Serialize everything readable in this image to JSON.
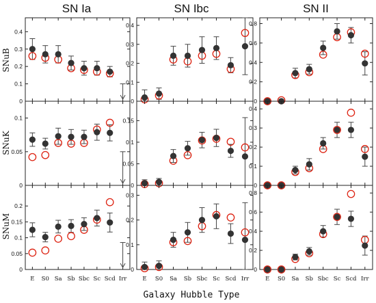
{
  "figure": {
    "xlabel": "Galaxy Hubble Type",
    "columns": [
      "SN Ia",
      "SN Ibc",
      "SN II"
    ],
    "rows": [
      "SNuB",
      "SNuK",
      "SNuM"
    ],
    "categories": [
      "E",
      "S0",
      "Sa",
      "Sb",
      "Sbc",
      "Sc",
      "Scd",
      "Irr"
    ]
  },
  "colors": {
    "measured": "#333333",
    "predicted": "#dd2211",
    "errorbar": "#444444"
  },
  "chart_data": [
    {
      "type": "scatter",
      "panel": "SN Ia / SNuB",
      "ylim": [
        0,
        0.48
      ],
      "yticks": [
        0,
        0.1,
        0.2,
        0.3,
        0.4
      ],
      "series": [
        {
          "marker": "filled-circle",
          "values": [
            0.3,
            0.27,
            0.27,
            0.22,
            0.19,
            0.19,
            0.17,
            null
          ],
          "err": [
            0.06,
            0.05,
            0.05,
            0.04,
            0.04,
            0.04,
            0.03,
            null
          ]
        },
        {
          "marker": "open-circle",
          "values": [
            0.26,
            0.25,
            0.24,
            0.19,
            0.18,
            0.17,
            0.16,
            null
          ]
        }
      ],
      "upper_limit": {
        "category": "Irr",
        "value": 0.1
      }
    },
    {
      "type": "scatter",
      "panel": "SN Ibc / SNuB",
      "ylim": [
        0,
        0.44
      ],
      "yticks": [
        0,
        0.1,
        0.2,
        0.3,
        0.4
      ],
      "series": [
        {
          "marker": "filled-circle",
          "values": [
            0.02,
            0.04,
            0.24,
            0.24,
            0.27,
            0.28,
            0.19,
            0.29
          ],
          "err": [
            0.04,
            0.03,
            0.05,
            0.06,
            0.07,
            0.06,
            0.04,
            0.15
          ]
        },
        {
          "marker": "open-circle",
          "values": [
            0.01,
            0.03,
            0.22,
            0.21,
            0.24,
            0.25,
            0.17,
            0.36
          ]
        }
      ]
    },
    {
      "type": "scatter",
      "panel": "SN II / SNuB",
      "ylim": [
        0,
        0.86
      ],
      "yticks": [
        0,
        0.2,
        0.4,
        0.6,
        0.8
      ],
      "series": [
        {
          "marker": "filled-circle",
          "values": [
            0.0,
            0.0,
            0.29,
            0.33,
            0.55,
            0.72,
            0.68,
            0.39
          ],
          "err": [
            0.02,
            0.02,
            0.05,
            0.05,
            0.07,
            0.08,
            0.08,
            0.12
          ]
        },
        {
          "marker": "open-circle",
          "values": [
            0.0,
            0.01,
            0.27,
            0.3,
            0.48,
            0.66,
            0.71,
            0.49
          ]
        }
      ]
    },
    {
      "type": "scatter",
      "panel": "SN Ia / SNuK",
      "ylim": [
        0,
        0.125
      ],
      "yticks": [
        0,
        0.05,
        0.1
      ],
      "series": [
        {
          "marker": "filled-circle",
          "values": [
            0.068,
            0.062,
            0.073,
            0.072,
            0.072,
            0.079,
            0.078,
            null
          ],
          "err": [
            0.01,
            0.008,
            0.012,
            0.011,
            0.01,
            0.012,
            0.012,
            null
          ]
        },
        {
          "marker": "open-circle",
          "values": [
            0.042,
            0.045,
            0.063,
            0.062,
            0.063,
            0.083,
            0.093,
            null
          ]
        }
      ],
      "upper_limit": {
        "category": "Irr",
        "value": 0.05
      }
    },
    {
      "type": "scatter",
      "panel": "SN Ibc / SNuK",
      "ylim": [
        0,
        0.195
      ],
      "yticks": [
        0,
        0.05,
        0.1,
        0.15
      ],
      "series": [
        {
          "marker": "filled-circle",
          "values": [
            0.005,
            0.008,
            0.068,
            0.086,
            0.105,
            0.11,
            0.08,
            0.067
          ],
          "err": [
            0.008,
            0.008,
            0.015,
            0.016,
            0.018,
            0.02,
            0.015,
            0.09
          ]
        },
        {
          "marker": "open-circle",
          "values": [
            0.003,
            0.005,
            0.057,
            0.07,
            0.104,
            0.108,
            0.101,
            0.088
          ]
        }
      ]
    },
    {
      "type": "scatter",
      "panel": "SN II / SNuK",
      "ylim": [
        0,
        0.44
      ],
      "yticks": [
        0,
        0.1,
        0.2,
        0.3,
        0.4
      ],
      "series": [
        {
          "marker": "filled-circle",
          "values": [
            0.0,
            0.0,
            0.08,
            0.11,
            0.22,
            0.29,
            0.29,
            0.15
          ],
          "err": [
            0.01,
            0.01,
            0.02,
            0.03,
            0.03,
            0.04,
            0.04,
            0.05
          ]
        },
        {
          "marker": "open-circle",
          "values": [
            0.0,
            0.0,
            0.07,
            0.09,
            0.19,
            0.29,
            0.38,
            0.19
          ]
        }
      ]
    },
    {
      "type": "scatter",
      "panel": "SN Ia / SNuM",
      "ylim": [
        0,
        0.265
      ],
      "yticks": [
        0,
        0.05,
        0.1,
        0.15,
        0.2
      ],
      "series": [
        {
          "marker": "filled-circle",
          "values": [
            0.125,
            0.102,
            0.135,
            0.137,
            0.143,
            0.162,
            0.148,
            null
          ],
          "err": [
            0.022,
            0.015,
            0.02,
            0.02,
            0.02,
            0.025,
            0.03,
            null
          ]
        },
        {
          "marker": "open-circle",
          "values": [
            0.053,
            0.06,
            0.097,
            0.105,
            0.125,
            0.157,
            0.212,
            null
          ]
        }
      ],
      "upper_limit": {
        "category": "Irr",
        "value": 0.085
      }
    },
    {
      "type": "scatter",
      "panel": "SN Ibc / SNuM",
      "ylim": [
        0,
        0.34
      ],
      "yticks": [
        0,
        0.1,
        0.2,
        0.3
      ],
      "series": [
        {
          "marker": "filled-circle",
          "values": [
            0.01,
            0.015,
            0.12,
            0.15,
            0.2,
            0.215,
            0.145,
            0.12
          ],
          "err": [
            0.02,
            0.02,
            0.03,
            0.04,
            0.05,
            0.05,
            0.04,
            0.15
          ]
        },
        {
          "marker": "open-circle",
          "values": [
            0.005,
            0.01,
            0.11,
            0.115,
            0.175,
            0.22,
            0.21,
            0.15
          ]
        }
      ]
    },
    {
      "type": "scatter",
      "panel": "SN II / SNuM",
      "ylim": [
        0,
        0.88
      ],
      "yticks": [
        0,
        0.2,
        0.4,
        0.6,
        0.8
      ],
      "series": [
        {
          "marker": "filled-circle",
          "values": [
            0.0,
            0.0,
            0.13,
            0.19,
            0.4,
            0.55,
            0.53,
            0.25
          ],
          "err": [
            0.02,
            0.02,
            0.03,
            0.04,
            0.06,
            0.08,
            0.08,
            0.1
          ]
        },
        {
          "marker": "open-circle",
          "values": [
            0.0,
            0.0,
            0.11,
            0.17,
            0.37,
            0.55,
            0.79,
            0.31
          ]
        }
      ]
    }
  ]
}
